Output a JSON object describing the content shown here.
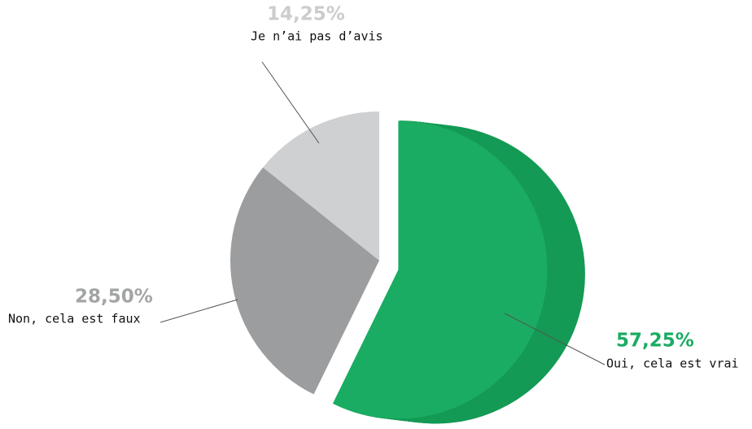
{
  "chart_data": {
    "type": "pie",
    "categories": [
      "Oui, cela est vrai",
      "Non, cela est faux",
      "Je n’ai pas d’avis"
    ],
    "values": [
      57.25,
      28.5,
      14.25
    ],
    "value_labels": [
      "57,25%",
      "28,50%",
      "14,25%"
    ],
    "colors": [
      "#1aac62",
      "#9c9d9f",
      "#cfd0d2"
    ],
    "label_colors": [
      "#1aac62",
      "#a3a4a6",
      "#cbcccd"
    ]
  }
}
